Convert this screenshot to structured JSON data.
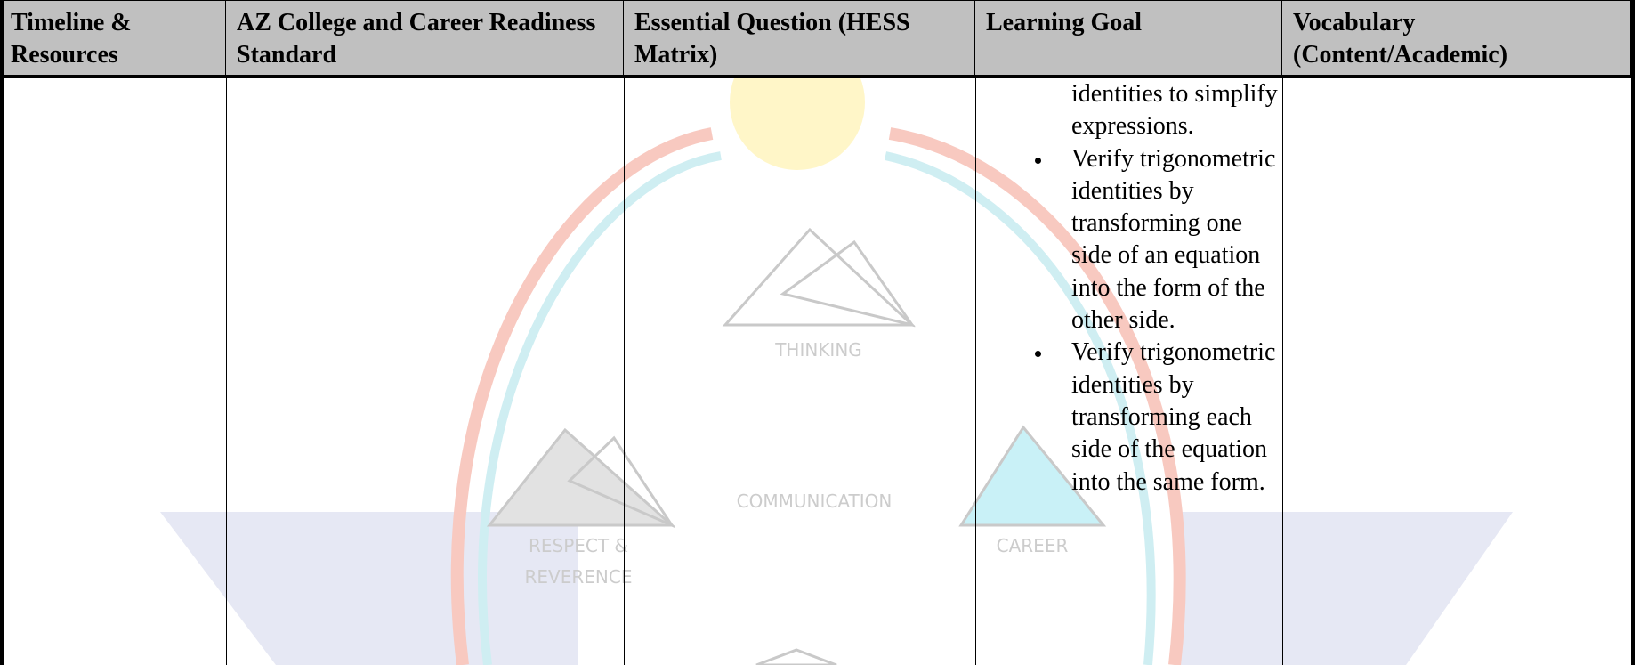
{
  "table": {
    "headers": [
      "Timeline & Resources",
      "AZ College and Career Readiness Standard",
      "Essential Question (HESS Matrix)",
      "Learning Goal",
      "Vocabulary (Content/Academic)"
    ],
    "learning_goal": {
      "continuation": "identities to simplify expressions.",
      "bullets": [
        "Verify trigonometric identities by transforming one side of an equation into the form of the other side.",
        "Verify trigonometric identities by transforming each side of the equation into the same form."
      ]
    }
  },
  "watermark": {
    "labels": [
      "THINKING",
      "COMMUNICATION",
      "RESPECT &",
      "REVERENCE",
      "CAREER"
    ]
  }
}
